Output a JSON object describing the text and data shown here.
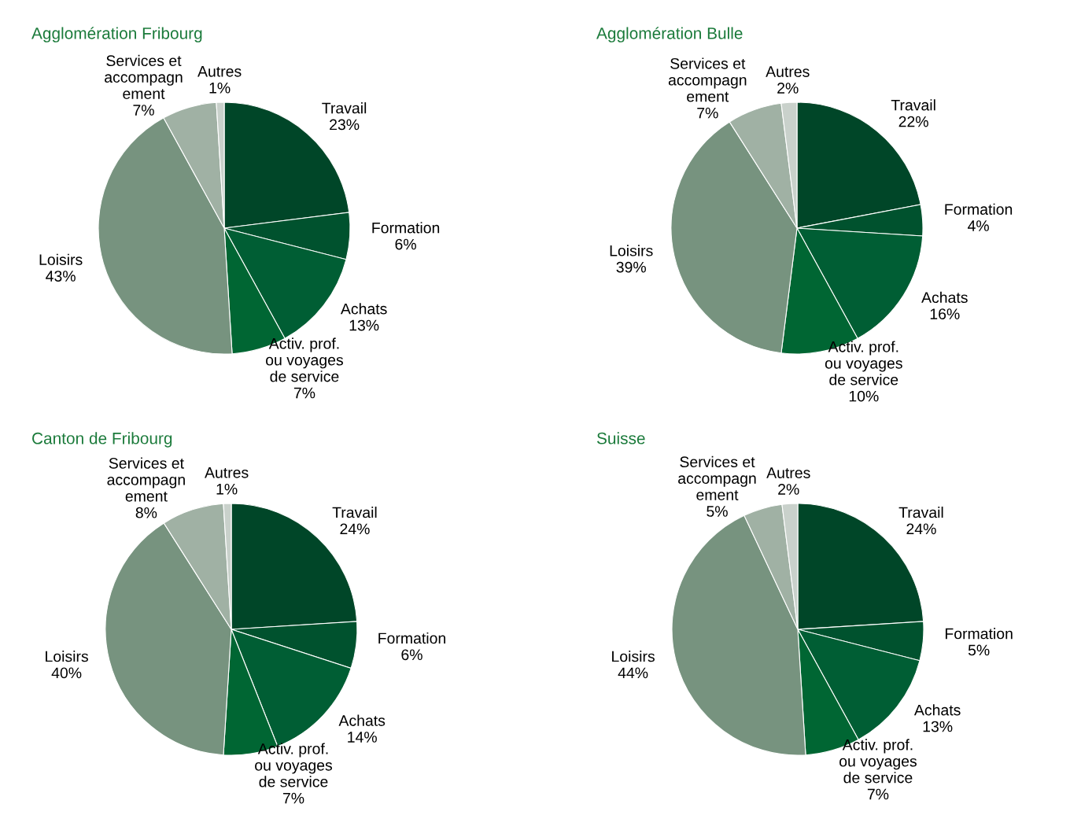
{
  "chart_data": [
    {
      "type": "pie",
      "title": "Agglomération Fribourg",
      "categories": [
        "Travail",
        "Formation",
        "Achats",
        "Activ. prof.\nou voyages\nde service",
        "Loisirs",
        "Services et\naccompagn\nement",
        "Autres"
      ],
      "values": [
        23,
        6,
        13,
        7,
        43,
        7,
        1
      ],
      "value_labels": [
        "23%",
        "6%",
        "13%",
        "7%",
        "43%",
        "7%",
        "1%"
      ],
      "colors": [
        "#004628",
        "#00522e",
        "#005e34",
        "#006633",
        "#77937f",
        "#a0b1a4",
        "#c9d1cb"
      ]
    },
    {
      "type": "pie",
      "title": "Agglomération Bulle",
      "categories": [
        "Travail",
        "Formation",
        "Achats",
        "Activ. prof.\nou voyages\nde service",
        "Loisirs",
        "Services et\naccompagn\nement",
        "Autres"
      ],
      "values": [
        22,
        4,
        16,
        10,
        39,
        7,
        2
      ],
      "value_labels": [
        "22%",
        "4%",
        "16%",
        "10%",
        "39%",
        "7%",
        "2%"
      ],
      "colors": [
        "#004628",
        "#00522e",
        "#005e34",
        "#006633",
        "#77937f",
        "#a0b1a4",
        "#c9d1cb"
      ]
    },
    {
      "type": "pie",
      "title": "Canton de Fribourg",
      "categories": [
        "Travail",
        "Formation",
        "Achats",
        "Activ. prof.\nou voyages\nde service",
        "Loisirs",
        "Services et\naccompagn\nement",
        "Autres"
      ],
      "values": [
        24,
        6,
        14,
        7,
        40,
        8,
        1
      ],
      "value_labels": [
        "24%",
        "6%",
        "14%",
        "7%",
        "40%",
        "8%",
        "1%"
      ],
      "colors": [
        "#004628",
        "#00522e",
        "#005e34",
        "#006633",
        "#77937f",
        "#a0b1a4",
        "#c9d1cb"
      ]
    },
    {
      "type": "pie",
      "title": "Suisse",
      "categories": [
        "Travail",
        "Formation",
        "Achats",
        "Activ. prof.\nou voyages\nde service",
        "Loisirs",
        "Services et\naccompagn\nement",
        "Autres"
      ],
      "values": [
        24,
        5,
        13,
        7,
        44,
        5,
        2
      ],
      "value_labels": [
        "24%",
        "5%",
        "13%",
        "7%",
        "44%",
        "5%",
        "2%"
      ],
      "colors": [
        "#004628",
        "#00522e",
        "#005e34",
        "#006633",
        "#77937f",
        "#a0b1a4",
        "#c9d1cb"
      ]
    }
  ]
}
